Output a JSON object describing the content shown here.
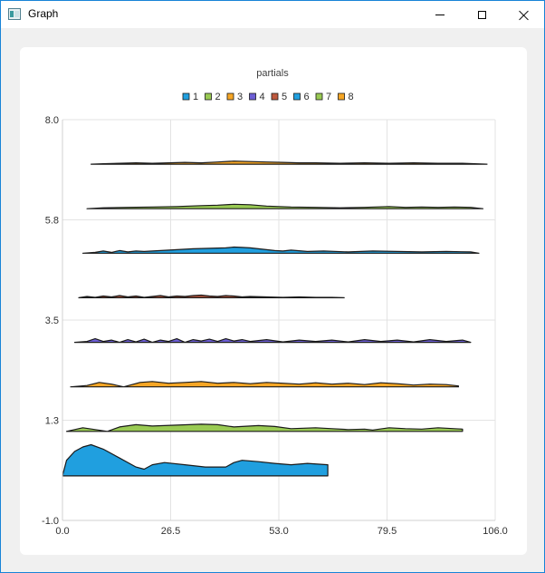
{
  "window": {
    "title": "Graph",
    "app_icon": "chart-window-icon",
    "controls": {
      "minimize": "minimize-icon",
      "maximize": "maximize-icon",
      "close": "close-icon"
    }
  },
  "chart_data": {
    "type": "area",
    "title": "partials",
    "xlabel": "",
    "ylabel": "",
    "xlim": [
      0.0,
      106.0
    ],
    "ylim": [
      -1.0,
      8.0
    ],
    "xticks": [
      "0.0",
      "26.5",
      "53.0",
      "79.5",
      "106.0"
    ],
    "yticks": [
      "-1.0",
      "1.3",
      "3.5",
      "5.8",
      "8.0"
    ],
    "grid": true,
    "legend": "top",
    "series": [
      {
        "name": "1",
        "color": "#209fdf",
        "baseline": 0.0,
        "x": [
          0,
          1,
          3,
          5,
          7,
          10,
          14,
          18,
          20,
          22,
          25,
          30,
          35,
          40,
          42,
          44,
          48,
          52,
          56,
          60,
          65
        ],
        "y": [
          0.0,
          0.35,
          0.55,
          0.65,
          0.7,
          0.6,
          0.4,
          0.2,
          0.15,
          0.25,
          0.3,
          0.25,
          0.2,
          0.2,
          0.3,
          0.35,
          0.32,
          0.28,
          0.25,
          0.28,
          0.25
        ]
      },
      {
        "name": "2",
        "color": "#99ca53",
        "baseline": 1.0,
        "x": [
          1,
          5,
          8,
          11,
          14,
          18,
          22,
          28,
          34,
          38,
          42,
          48,
          52,
          56,
          62,
          66,
          70,
          74,
          76,
          80,
          84,
          88,
          92,
          96,
          98
        ],
        "y": [
          0.0,
          0.08,
          0.04,
          0.0,
          0.1,
          0.15,
          0.12,
          0.14,
          0.16,
          0.15,
          0.1,
          0.13,
          0.11,
          0.06,
          0.08,
          0.06,
          0.04,
          0.05,
          0.03,
          0.08,
          0.06,
          0.05,
          0.08,
          0.06,
          0.05
        ]
      },
      {
        "name": "3",
        "color": "#f6a625",
        "baseline": 2.0,
        "x": [
          2,
          6,
          9,
          12,
          15,
          19,
          22,
          26,
          30,
          34,
          38,
          42,
          46,
          50,
          54,
          58,
          62,
          66,
          70,
          74,
          78,
          82,
          86,
          90,
          94,
          97
        ],
        "y": [
          0.0,
          0.03,
          0.1,
          0.06,
          0.0,
          0.1,
          0.12,
          0.08,
          0.1,
          0.12,
          0.08,
          0.1,
          0.07,
          0.1,
          0.08,
          0.06,
          0.09,
          0.06,
          0.08,
          0.05,
          0.09,
          0.07,
          0.04,
          0.06,
          0.05,
          0.02
        ]
      },
      {
        "name": "4",
        "color": "#6d5fd5",
        "baseline": 3.0,
        "x": [
          3,
          6,
          8,
          10,
          12,
          14,
          16,
          18,
          20,
          22,
          24,
          26,
          28,
          30,
          32,
          34,
          36,
          38,
          40,
          42,
          44,
          46,
          50,
          54,
          58,
          62,
          66,
          70,
          74,
          78,
          82,
          86,
          90,
          94,
          98,
          100
        ],
        "y": [
          0.0,
          0.02,
          0.08,
          0.02,
          0.05,
          0.0,
          0.06,
          0.01,
          0.07,
          0.0,
          0.05,
          0.02,
          0.08,
          0.0,
          0.06,
          0.03,
          0.07,
          0.02,
          0.08,
          0.03,
          0.06,
          0.02,
          0.06,
          0.01,
          0.05,
          0.02,
          0.05,
          0.01,
          0.06,
          0.02,
          0.05,
          0.01,
          0.06,
          0.02,
          0.05,
          0.0
        ]
      },
      {
        "name": "5",
        "color": "#bf593e",
        "baseline": 4.0,
        "x": [
          4,
          6,
          8,
          10,
          12,
          14,
          16,
          18,
          20,
          22,
          24,
          26,
          28,
          30,
          32,
          34,
          36,
          38,
          40,
          42,
          44,
          46,
          50,
          54,
          58,
          62,
          66,
          69
        ],
        "y": [
          0.0,
          0.03,
          0.01,
          0.04,
          0.02,
          0.05,
          0.02,
          0.04,
          0.01,
          0.03,
          0.05,
          0.02,
          0.04,
          0.03,
          0.05,
          0.06,
          0.04,
          0.03,
          0.05,
          0.04,
          0.02,
          0.03,
          0.02,
          0.01,
          0.02,
          0.01,
          0.01,
          0.0
        ]
      },
      {
        "name": "6",
        "color": "#209fdf",
        "baseline": 5.0,
        "x": [
          5,
          8,
          10,
          12,
          14,
          16,
          18,
          20,
          24,
          28,
          32,
          36,
          40,
          42,
          44,
          46,
          48,
          50,
          52,
          54,
          56,
          60,
          64,
          70,
          76,
          82,
          88,
          94,
          100,
          102
        ],
        "y": [
          0.0,
          0.02,
          0.05,
          0.02,
          0.06,
          0.03,
          0.05,
          0.04,
          0.06,
          0.08,
          0.1,
          0.11,
          0.12,
          0.14,
          0.13,
          0.12,
          0.1,
          0.08,
          0.06,
          0.05,
          0.07,
          0.04,
          0.05,
          0.03,
          0.05,
          0.04,
          0.03,
          0.04,
          0.03,
          0.0
        ]
      },
      {
        "name": "7",
        "color": "#99ca53",
        "baseline": 6.0,
        "x": [
          6,
          10,
          16,
          22,
          28,
          34,
          38,
          42,
          46,
          50,
          56,
          62,
          68,
          74,
          80,
          84,
          88,
          92,
          96,
          100,
          103
        ],
        "y": [
          0.0,
          0.02,
          0.03,
          0.04,
          0.05,
          0.07,
          0.08,
          0.1,
          0.09,
          0.06,
          0.04,
          0.03,
          0.02,
          0.03,
          0.05,
          0.03,
          0.04,
          0.03,
          0.04,
          0.03,
          0.0
        ]
      },
      {
        "name": "8",
        "color": "#f6a625",
        "baseline": 7.0,
        "x": [
          7,
          10,
          14,
          18,
          22,
          26,
          30,
          34,
          38,
          42,
          46,
          50,
          54,
          58,
          62,
          68,
          74,
          80,
          86,
          92,
          98,
          104
        ],
        "y": [
          0.0,
          0.01,
          0.02,
          0.03,
          0.02,
          0.03,
          0.04,
          0.03,
          0.05,
          0.07,
          0.06,
          0.05,
          0.04,
          0.03,
          0.03,
          0.02,
          0.03,
          0.02,
          0.03,
          0.02,
          0.02,
          0.0
        ]
      }
    ]
  }
}
